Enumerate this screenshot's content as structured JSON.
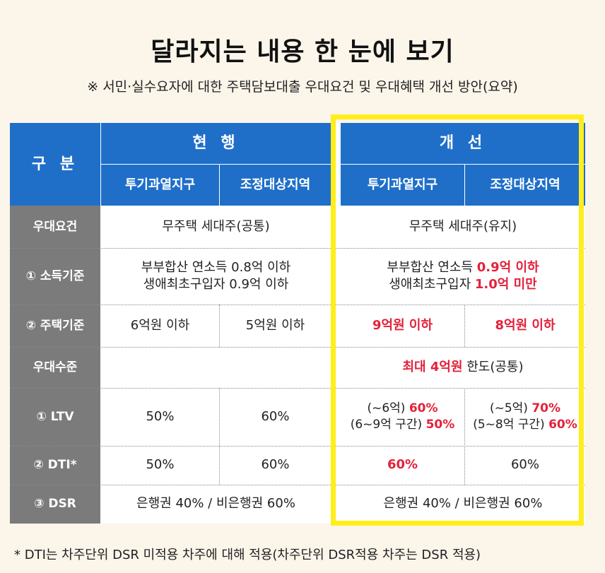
{
  "title": "달라지는 내용 한 눈에 보기",
  "subtitle": "※ 서민·실수요자에 대한 주택담보대출 우대요건 및 우대혜택 개선 방안(요약)",
  "header": {
    "category": "구 분",
    "current": "현 행",
    "improved": "개 선",
    "overheated": "투기과열지구",
    "adjusted": "조정대상지역"
  },
  "rows": {
    "preferential_req": {
      "label": "우대요건",
      "current": "무주택 세대주(공통)",
      "improved": "무주택 세대주(유지)"
    },
    "income": {
      "label": "① 소득기준",
      "current_line1": "부부합산 연소득 0.8억 이하",
      "current_line2": "생애최초구입자 0.9억 이하",
      "improved_line1_prefix": "부부합산 연소득 ",
      "improved_line1_red": "0.9억 이하",
      "improved_line2_prefix": "생애최초구입자 ",
      "improved_line2_red": "1.0억 미만"
    },
    "house": {
      "label": "② 주택기준",
      "current_overheated": "6억원 이하",
      "current_adjusted": "5억원 이하",
      "improved_overheated": "9억원 이하",
      "improved_adjusted": "8억원 이하"
    },
    "pref_level": {
      "label": "우대수준",
      "improved_red": "최대 4억원",
      "improved_suffix": " 한도(공통)"
    },
    "ltv": {
      "label": "① LTV",
      "current_overheated": "50%",
      "current_adjusted": "60%",
      "imp_oh_l1_prefix": "(~6억) ",
      "imp_oh_l1_red": "60%",
      "imp_oh_l2_prefix": "(6~9억 구간) ",
      "imp_oh_l2_red": "50%",
      "imp_ad_l1_prefix": "(~5억) ",
      "imp_ad_l1_red": "70%",
      "imp_ad_l2_prefix": "(5~8억 구간) ",
      "imp_ad_l2_red": "60%"
    },
    "dti": {
      "label": "② DTI*",
      "current_overheated": "50%",
      "current_adjusted": "60%",
      "improved_overheated": "60%",
      "improved_adjusted": "60%"
    },
    "dsr": {
      "label": "③ DSR",
      "current": "은행권 40% / 비은행권 60%",
      "improved": "은행권 40% / 비은행권 60%"
    }
  },
  "footnote": "* DTI는 차주단위 DSR 미적용 차주에 대해 적용(차주단위 DSR적용 차주는 DSR 적용)",
  "colors": {
    "header_blue": "#1f6fc9",
    "label_gray": "#7b7b7b",
    "highlight_red": "#e4213b",
    "highlight_yellow": "#ffee1a"
  }
}
